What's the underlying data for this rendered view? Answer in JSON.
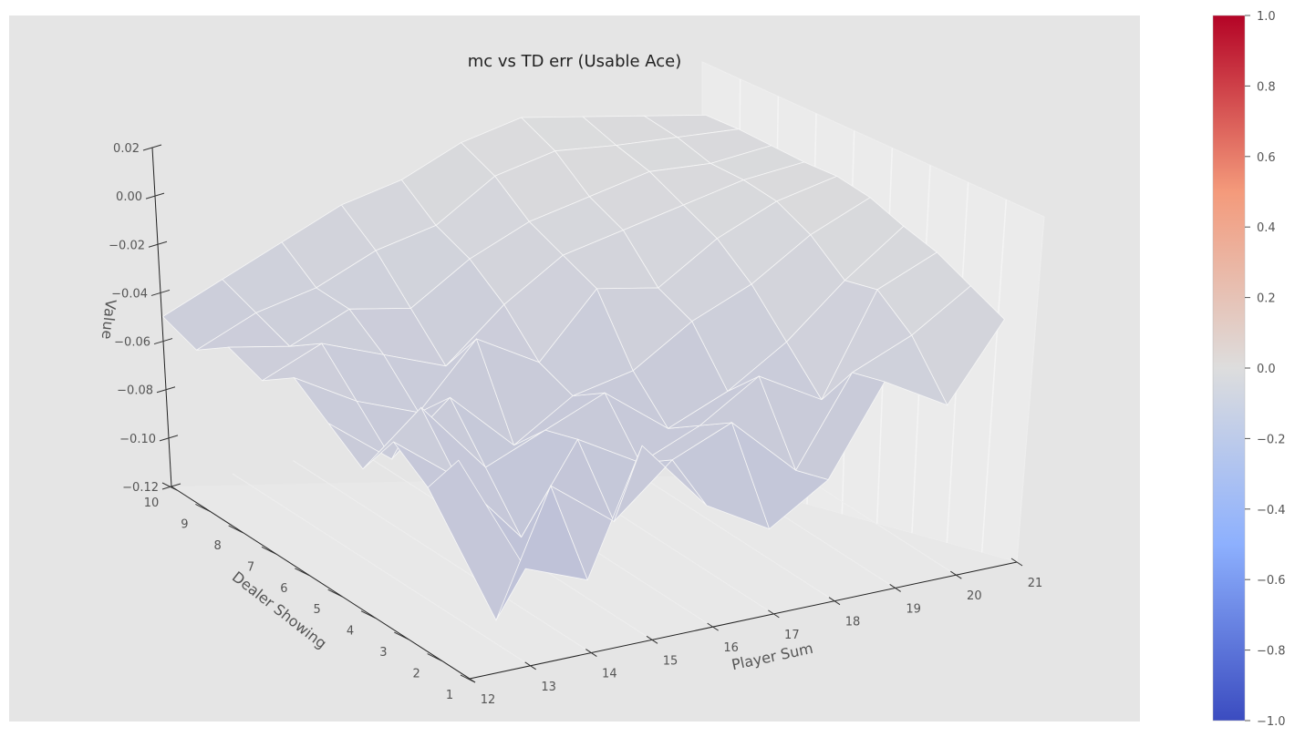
{
  "chart_data": {
    "type": "surface",
    "title": "mc vs TD err (Usable Ace)",
    "xlabel": "Player Sum",
    "ylabel": "Dealer Showing",
    "zlabel": "Value",
    "x": [
      12,
      13,
      14,
      15,
      16,
      17,
      18,
      19,
      20,
      21
    ],
    "y": [
      1,
      2,
      3,
      4,
      5,
      6,
      7,
      8,
      9,
      10
    ],
    "zlim": [
      -0.12,
      0.02
    ],
    "x_ticks": [
      "12",
      "13",
      "14",
      "15",
      "16",
      "17",
      "18",
      "19",
      "20",
      "21"
    ],
    "y_ticks": [
      "1",
      "2",
      "3",
      "4",
      "5",
      "6",
      "7",
      "8",
      "9",
      "10"
    ],
    "z_ticks": [
      "−0.12",
      "−0.10",
      "−0.08",
      "−0.06",
      "−0.04",
      "−0.02",
      "0.00",
      "0.02"
    ],
    "z_tick_values": [
      -0.12,
      -0.1,
      -0.08,
      -0.06,
      -0.04,
      -0.02,
      0.0,
      0.02
    ],
    "z_rows_by_dealer": [
      [
        -0.03,
        -0.08,
        -0.09,
        -0.04,
        -0.07,
        -0.085,
        -0.07,
        -0.035,
        -0.05,
        -0.02
      ],
      [
        -0.05,
        -0.11,
        -0.06,
        -0.08,
        -0.06,
        -0.05,
        -0.075,
        -0.04,
        -0.03,
        -0.015
      ],
      [
        -0.04,
        -0.06,
        -0.09,
        -0.055,
        -0.07,
        -0.06,
        -0.045,
        -0.06,
        -0.02,
        -0.01
      ],
      [
        -0.06,
        -0.04,
        -0.07,
        -0.06,
        -0.05,
        -0.07,
        -0.06,
        -0.045,
        -0.025,
        -0.008
      ],
      [
        -0.05,
        -0.07,
        -0.05,
        -0.075,
        -0.06,
        -0.055,
        -0.04,
        -0.03,
        -0.015,
        -0.005
      ],
      [
        -0.04,
        -0.055,
        -0.065,
        -0.04,
        -0.055,
        -0.03,
        -0.035,
        -0.02,
        -0.01,
        -0.005
      ],
      [
        -0.05,
        -0.04,
        -0.05,
        -0.06,
        -0.04,
        -0.025,
        -0.02,
        -0.015,
        -0.01,
        -0.008
      ],
      [
        -0.045,
        -0.05,
        -0.04,
        -0.045,
        -0.03,
        -0.02,
        -0.015,
        -0.01,
        -0.012,
        -0.01
      ],
      [
        -0.055,
        -0.045,
        -0.04,
        -0.03,
        -0.025,
        -0.01,
        -0.005,
        -0.008,
        -0.01,
        -0.012
      ],
      [
        -0.05,
        -0.04,
        -0.03,
        -0.02,
        -0.015,
        -0.005,
        0.0,
        -0.005,
        -0.01,
        -0.015
      ]
    ],
    "colormap": "coolwarm",
    "colorbar": {
      "range": [
        -1.0,
        1.0
      ],
      "ticks": [
        "−1.0",
        "−0.8",
        "−0.6",
        "−0.4",
        "−0.2",
        "0.0",
        "0.2",
        "0.4",
        "0.6",
        "0.8",
        "1.0"
      ],
      "tick_values": [
        -1.0,
        -0.8,
        -0.6,
        -0.4,
        -0.2,
        0.0,
        0.2,
        0.4,
        0.6,
        0.8,
        1.0
      ],
      "colors": {
        "low": "#3b4cc0",
        "mid": "#dddddd",
        "high": "#b40426"
      }
    },
    "grid": true
  },
  "theme": {
    "axes_bg": "#e5e5e5",
    "wall_color": "#ebebeb",
    "grid_color": "#f4f4f4",
    "mesh_edge": "#f6f6f6"
  }
}
